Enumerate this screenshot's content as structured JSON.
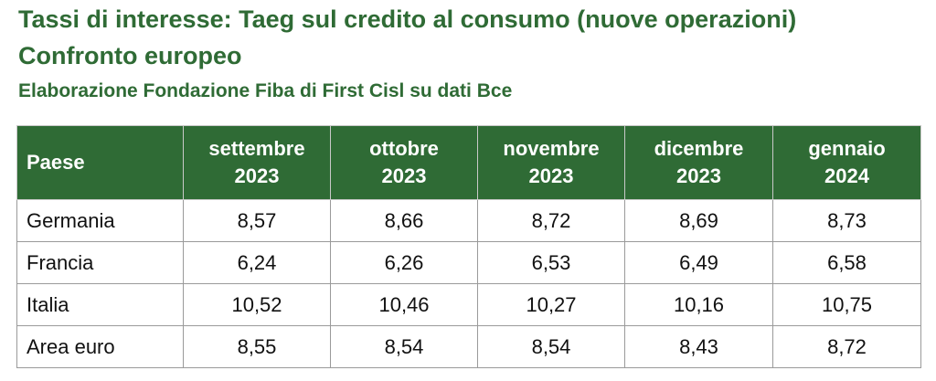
{
  "header": {
    "title": "Tassi di interesse: Taeg sul credito al consumo (nuove operazioni)",
    "subtitle": "Confronto europeo",
    "source": "Elaborazione Fondazione Fiba di First Cisl su dati Bce"
  },
  "table": {
    "columns": [
      {
        "label": "Paese"
      },
      {
        "line1": "settembre",
        "line2": "2023"
      },
      {
        "line1": "ottobre",
        "line2": "2023"
      },
      {
        "line1": "novembre",
        "line2": "2023"
      },
      {
        "line1": "dicembre",
        "line2": "2023"
      },
      {
        "line1": "gennaio",
        "line2": "2024"
      }
    ],
    "rows": [
      {
        "country": "Germania",
        "values": [
          "8,57",
          "8,66",
          "8,72",
          "8,69",
          "8,73"
        ]
      },
      {
        "country": "Francia",
        "values": [
          "6,24",
          "6,26",
          "6,53",
          "6,49",
          "6,58"
        ]
      },
      {
        "country": "Italia",
        "values": [
          "10,52",
          "10,46",
          "10,27",
          "10,16",
          "10,75"
        ]
      },
      {
        "country": "Area euro",
        "values": [
          "8,55",
          "8,54",
          "8,54",
          "8,43",
          "8,72"
        ]
      }
    ]
  }
}
